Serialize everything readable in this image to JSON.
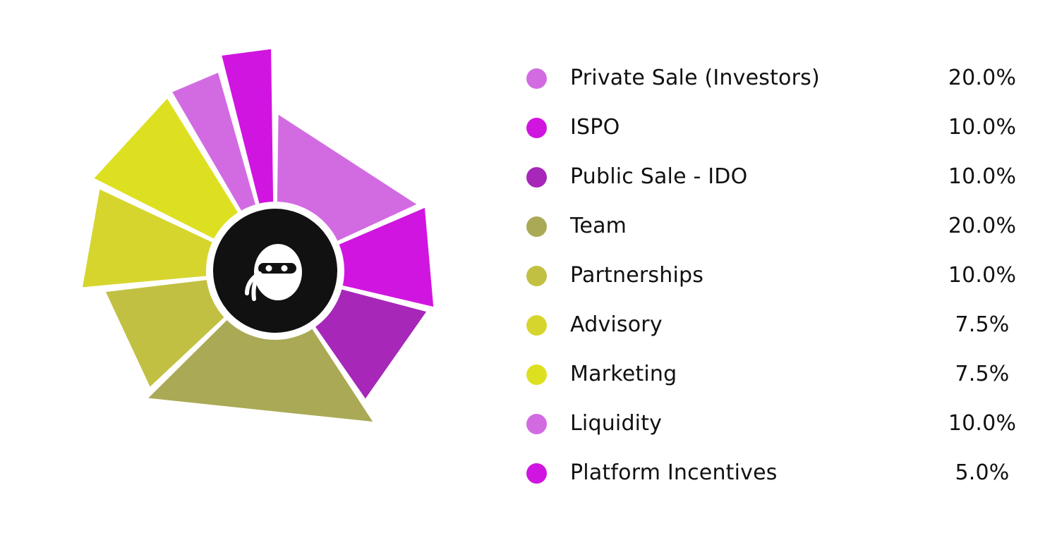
{
  "chart_data": {
    "type": "pie",
    "variant": "polar-area-donut",
    "categories": [
      "Private Sale (Investors)",
      "ISPO",
      "Public Sale - IDO",
      "Team",
      "Partnerships",
      "Advisory",
      "Marketing",
      "Liquidity",
      "Platform Incentives"
    ],
    "values": [
      20.0,
      10.0,
      10.0,
      20.0,
      10.0,
      7.5,
      7.5,
      10.0,
      5.0
    ],
    "value_labels": [
      "20.0%",
      "10.0%",
      "10.0%",
      "20.0%",
      "10.0%",
      "7.5%",
      "7.5%",
      "10.0%",
      "5.0%"
    ],
    "colors": [
      "#d26be2",
      "#d115e0",
      "#a627b8",
      "#aaa955",
      "#c2c042",
      "#d6d52e",
      "#dde020",
      "#d26be2",
      "#d115e0"
    ],
    "legend_position": "right",
    "center_icon": "ninja-mascot-icon"
  }
}
